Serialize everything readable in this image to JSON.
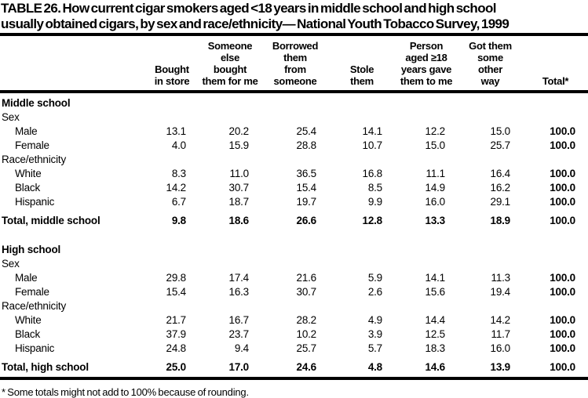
{
  "title": "TABLE 26. How current cigar smokers aged <18 years in middle school and high school\nusually obtained cigars, by sex and race/ethnicity— National Youth Tobacco Survey, 1999",
  "columns": [
    "",
    "Bought\nin store",
    "Someone\nelse\nbought\nthem for me",
    "Borrowed\nthem\nfrom\nsomeone",
    "Stole\nthem",
    "Person\naged ≥18\nyears gave\nthem to me",
    "Got them\nsome\nother\nway",
    "Total*"
  ],
  "sections": [
    {
      "name": "Middle school",
      "groups": [
        {
          "label": "Sex",
          "rows": [
            {
              "label": "Male",
              "values": [
                "13.1",
                "20.2",
                "25.4",
                "14.1",
                "12.2",
                "15.0",
                "100.0"
              ]
            },
            {
              "label": "Female",
              "values": [
                "4.0",
                "15.9",
                "28.8",
                "10.7",
                "15.0",
                "25.7",
                "100.0"
              ]
            }
          ]
        },
        {
          "label": "Race/ethnicity",
          "rows": [
            {
              "label": "White",
              "values": [
                "8.3",
                "11.0",
                "36.5",
                "16.8",
                "11.1",
                "16.4",
                "100.0"
              ]
            },
            {
              "label": "Black",
              "values": [
                "14.2",
                "30.7",
                "15.4",
                "8.5",
                "14.9",
                "16.2",
                "100.0"
              ]
            },
            {
              "label": "Hispanic",
              "values": [
                "6.7",
                "18.7",
                "19.7",
                "9.9",
                "16.0",
                "29.1",
                "100.0"
              ]
            }
          ]
        }
      ],
      "total": {
        "label": "Total, middle school",
        "values": [
          "9.8",
          "18.6",
          "26.6",
          "12.8",
          "13.3",
          "18.9",
          "100.0"
        ]
      }
    },
    {
      "name": "High school",
      "groups": [
        {
          "label": "Sex",
          "rows": [
            {
              "label": "Male",
              "values": [
                "29.8",
                "17.4",
                "21.6",
                "5.9",
                "14.1",
                "11.3",
                "100.0"
              ]
            },
            {
              "label": "Female",
              "values": [
                "15.4",
                "16.3",
                "30.7",
                "2.6",
                "15.6",
                "19.4",
                "100.0"
              ]
            }
          ]
        },
        {
          "label": "Race/ethnicity",
          "rows": [
            {
              "label": "White",
              "values": [
                "21.7",
                "16.7",
                "28.2",
                "4.9",
                "14.4",
                "14.2",
                "100.0"
              ]
            },
            {
              "label": "Black",
              "values": [
                "37.9",
                "23.7",
                "10.2",
                "3.9",
                "12.5",
                "11.7",
                "100.0"
              ]
            },
            {
              "label": "Hispanic",
              "values": [
                "24.8",
                "9.4",
                "25.7",
                "5.7",
                "18.3",
                "16.0",
                "100.0"
              ]
            }
          ]
        }
      ],
      "total": {
        "label": "Total, high school",
        "values": [
          "25.0",
          "17.0",
          "24.6",
          "4.8",
          "14.6",
          "13.9",
          "100.0"
        ]
      }
    }
  ],
  "footnote": "* Some totals might not add to 100% because of rounding."
}
